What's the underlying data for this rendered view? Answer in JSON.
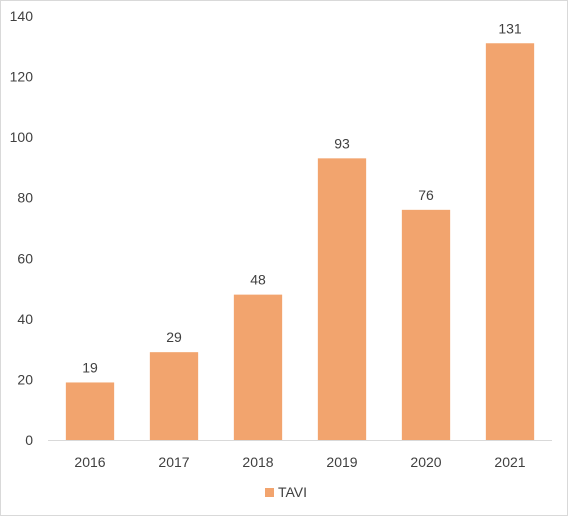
{
  "chart_data": {
    "type": "bar",
    "title": "",
    "xlabel": "",
    "ylabel": "",
    "categories": [
      "2016",
      "2017",
      "2018",
      "2019",
      "2020",
      "2021"
    ],
    "series": [
      {
        "name": "TAVI",
        "values": [
          19,
          29,
          48,
          93,
          76,
          131
        ],
        "color": "#f2a46e"
      }
    ],
    "ylim": [
      0,
      140
    ],
    "yticks": [
      "0",
      "20",
      "40",
      "60",
      "80",
      "100",
      "120",
      "140"
    ],
    "data_labels": true,
    "grid": false,
    "legend": {
      "position": "bottom",
      "entries": [
        "TAVI"
      ]
    }
  }
}
